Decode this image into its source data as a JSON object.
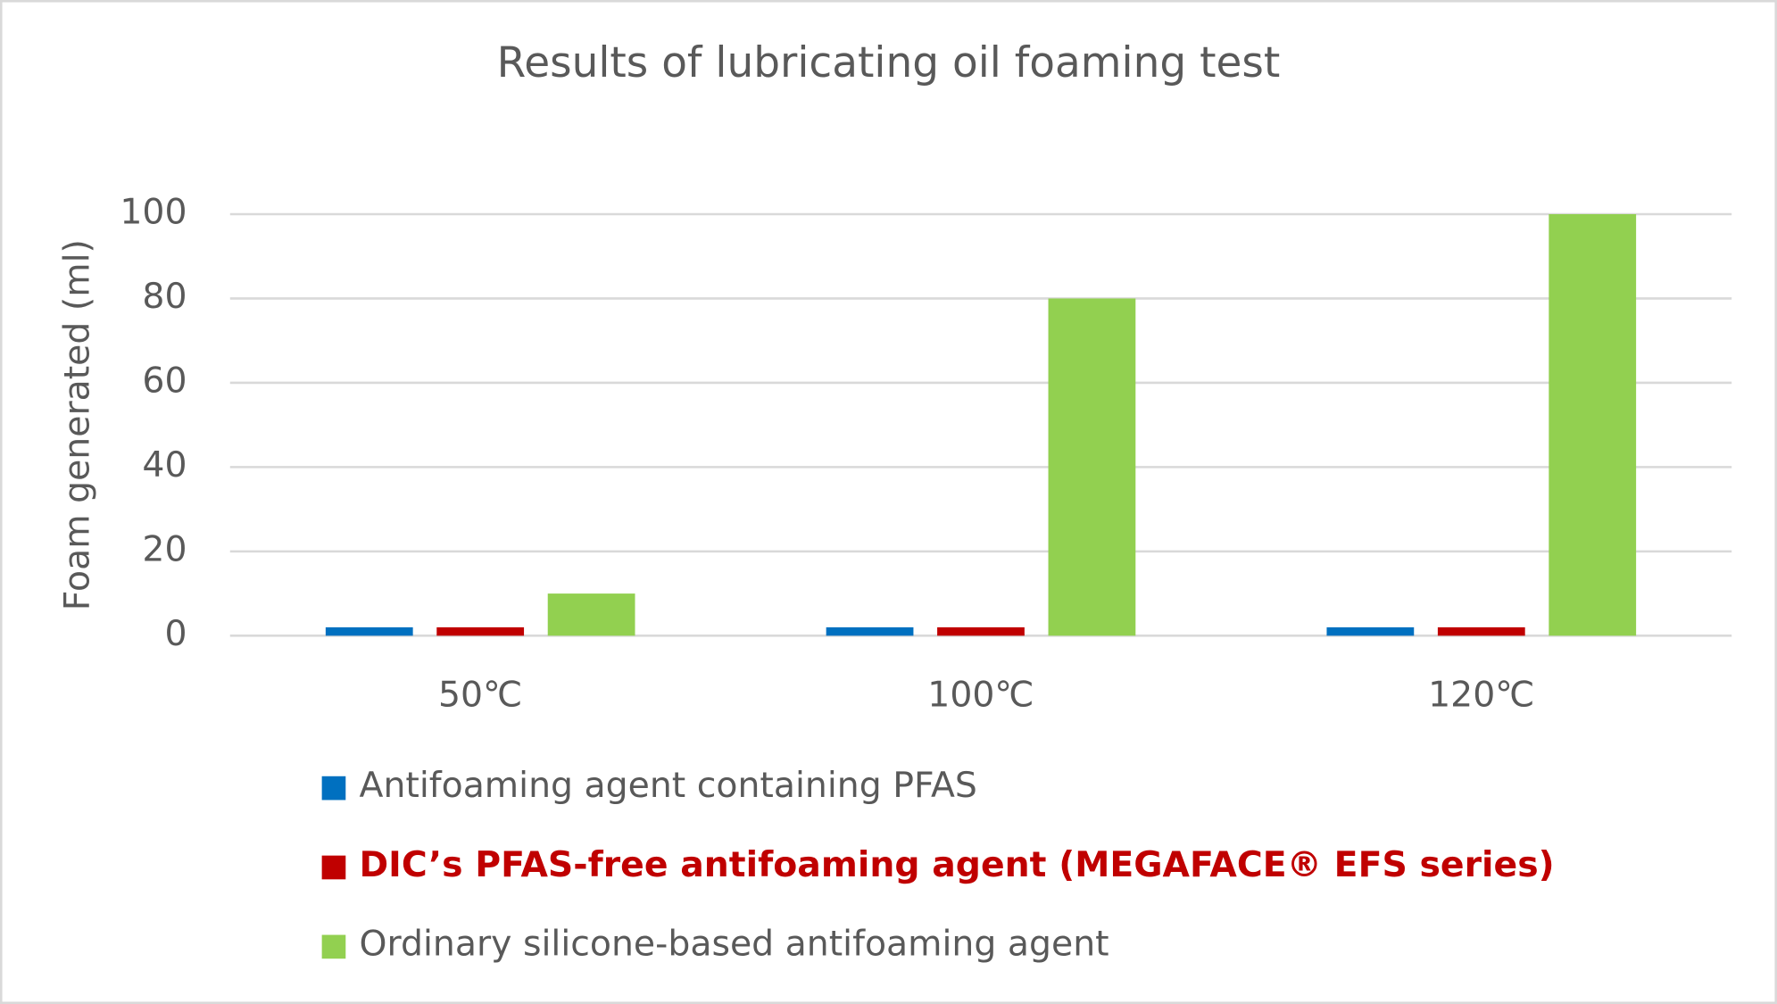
{
  "chart_data": {
    "type": "bar",
    "title": "Results of lubricating oil foaming test",
    "y_label": "Foam generated (ml)",
    "categories": [
      "50℃",
      "100℃",
      "120℃"
    ],
    "series": [
      {
        "name": "Antifoaming agent containing PFAS",
        "color": "#0070c0",
        "values": [
          2,
          2,
          2
        ]
      },
      {
        "name": "DIC’s PFAS-free antifoaming agent (MEGAFACE® EFS series)",
        "color": "#c00000",
        "values": [
          2,
          2,
          2
        ],
        "highlight": true
      },
      {
        "name": "Ordinary silicone-based antifoaming agent",
        "color": "#92d050",
        "values": [
          10,
          80,
          100
        ]
      }
    ],
    "ylim": [
      0,
      100
    ],
    "yticks": [
      0,
      20,
      40,
      60,
      80,
      100
    ],
    "grid": true,
    "legend": "bottom"
  }
}
